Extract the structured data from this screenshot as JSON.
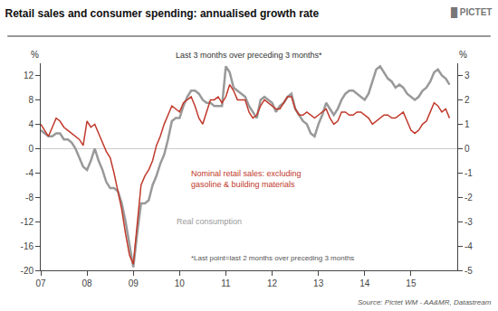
{
  "chart_data": {
    "type": "line",
    "title": "Retail sales and consumer spending: annualised growth rate",
    "subtitle": "Last 3 months over preceding 3 months*",
    "annotations": [
      "*Last point=last 2 months over preceding 3 months",
      "Source: Pictet WM - AA&MR, Datastream",
      "█ PICTET"
    ],
    "ylabel": "%",
    "y2label": "%",
    "grid": false,
    "x": [
      2007.0,
      2007.083,
      2007.167,
      2007.25,
      2007.333,
      2007.417,
      2007.5,
      2007.583,
      2007.667,
      2007.75,
      2007.833,
      2007.917,
      2008.0,
      2008.083,
      2008.167,
      2008.25,
      2008.333,
      2008.417,
      2008.5,
      2008.583,
      2008.667,
      2008.75,
      2008.833,
      2008.917,
      2009.0,
      2009.083,
      2009.167,
      2009.25,
      2009.333,
      2009.417,
      2009.5,
      2009.583,
      2009.667,
      2009.75,
      2009.833,
      2009.917,
      2010.0,
      2010.083,
      2010.167,
      2010.25,
      2010.333,
      2010.417,
      2010.5,
      2010.583,
      2010.667,
      2010.75,
      2010.833,
      2010.917,
      2011.0,
      2011.083,
      2011.167,
      2011.25,
      2011.333,
      2011.417,
      2011.5,
      2011.583,
      2011.667,
      2011.75,
      2011.833,
      2011.917,
      2012.0,
      2012.083,
      2012.167,
      2012.25,
      2012.333,
      2012.417,
      2012.5,
      2012.583,
      2012.667,
      2012.75,
      2012.833,
      2012.917,
      2013.0,
      2013.083,
      2013.167,
      2013.25,
      2013.333,
      2013.417,
      2013.5,
      2013.583,
      2013.667,
      2013.75,
      2013.833,
      2013.917,
      2014.0,
      2014.083,
      2014.167,
      2014.25,
      2014.333,
      2014.417,
      2014.5,
      2014.583,
      2014.667,
      2014.75,
      2014.833,
      2014.917,
      2015.0,
      2015.083,
      2015.167,
      2015.25,
      2015.333,
      2015.417,
      2015.5,
      2015.583,
      2015.667,
      2015.75,
      2015.833
    ],
    "xlim": [
      2007.0,
      2016.0
    ],
    "xticks": [
      {
        "value": 2007,
        "label": "07"
      },
      {
        "value": 2008,
        "label": "08"
      },
      {
        "value": 2009,
        "label": "09"
      },
      {
        "value": 2010,
        "label": "10"
      },
      {
        "value": 2011,
        "label": "11"
      },
      {
        "value": 2012,
        "label": "12"
      },
      {
        "value": 2013,
        "label": "13"
      },
      {
        "value": 2014,
        "label": "14"
      },
      {
        "value": 2015,
        "label": "15"
      }
    ],
    "ylim": [
      -20,
      14
    ],
    "yticks": [
      -20,
      -16,
      -12,
      -8,
      -4,
      0,
      4,
      8,
      12
    ],
    "y2lim": [
      -5,
      3.5
    ],
    "y2ticks": [
      -5,
      -4,
      -3,
      -2,
      -1,
      0,
      1,
      2,
      3
    ],
    "series": [
      {
        "name": "Real consumption",
        "color": "#999999",
        "values": [
          3.0,
          2.5,
          2.0,
          2.0,
          2.5,
          2.5,
          1.5,
          1.5,
          1.0,
          0.0,
          -1.5,
          -3.0,
          -3.5,
          -2.0,
          0.0,
          -2.0,
          -3.5,
          -5.5,
          -6.5,
          -6.5,
          -7.0,
          -9.0,
          -12.0,
          -16.0,
          -19.5,
          -14.0,
          -9.0,
          -9.0,
          -8.5,
          -6.0,
          -4.5,
          -2.5,
          -1.0,
          1.5,
          4.5,
          5.0,
          5.0,
          7.0,
          8.5,
          9.5,
          9.5,
          9.0,
          8.0,
          7.5,
          7.5,
          7.0,
          7.0,
          7.0,
          13.5,
          12.5,
          10.0,
          9.5,
          9.0,
          8.5,
          7.0,
          6.0,
          5.0,
          8.0,
          8.5,
          8.0,
          7.5,
          6.0,
          7.0,
          7.5,
          8.5,
          9.0,
          6.5,
          5.5,
          4.5,
          4.0,
          2.5,
          2.0,
          4.0,
          5.5,
          7.5,
          6.5,
          5.5,
          6.5,
          8.0,
          9.0,
          9.5,
          9.5,
          9.0,
          8.5,
          8.0,
          9.0,
          11.0,
          13.0,
          13.5,
          12.5,
          11.5,
          11.0,
          10.0,
          10.5,
          10.0,
          9.0,
          8.5,
          8.0,
          8.5,
          9.5,
          10.0,
          11.0,
          12.5,
          13.0,
          12.0,
          11.5,
          10.5
        ]
      },
      {
        "name": "Nominal retail sales: excluding\ngasoline & building materials",
        "color": "#c0392b",
        "values": [
          4.0,
          3.0,
          2.0,
          3.5,
          5.0,
          4.5,
          3.5,
          3.0,
          2.5,
          2.0,
          1.5,
          0.5,
          4.5,
          3.5,
          4.0,
          2.5,
          1.0,
          -0.5,
          -1.5,
          -4.0,
          -7.0,
          -10.0,
          -14.0,
          -17.5,
          -19.0,
          -13.0,
          -6.0,
          -4.5,
          -3.5,
          -2.0,
          0.5,
          2.0,
          4.0,
          5.5,
          7.0,
          6.5,
          6.0,
          7.5,
          8.0,
          8.5,
          7.0,
          5.0,
          4.0,
          6.0,
          8.0,
          8.0,
          8.5,
          7.5,
          8.5,
          10.5,
          9.5,
          8.0,
          8.0,
          8.0,
          6.0,
          5.0,
          5.5,
          7.0,
          8.0,
          7.5,
          7.0,
          6.5,
          6.5,
          7.5,
          8.5,
          8.5,
          6.5,
          5.5,
          5.5,
          6.0,
          5.5,
          5.0,
          5.5,
          6.0,
          6.5,
          5.0,
          4.0,
          4.5,
          6.0,
          6.0,
          5.5,
          5.5,
          6.0,
          6.0,
          5.5,
          5.0,
          4.0,
          4.5,
          5.0,
          5.5,
          5.5,
          5.0,
          5.0,
          5.5,
          6.0,
          4.5,
          3.0,
          2.5,
          3.0,
          4.0,
          4.5,
          6.0,
          7.5,
          7.0,
          6.0,
          6.5,
          5.0
        ]
      }
    ]
  }
}
